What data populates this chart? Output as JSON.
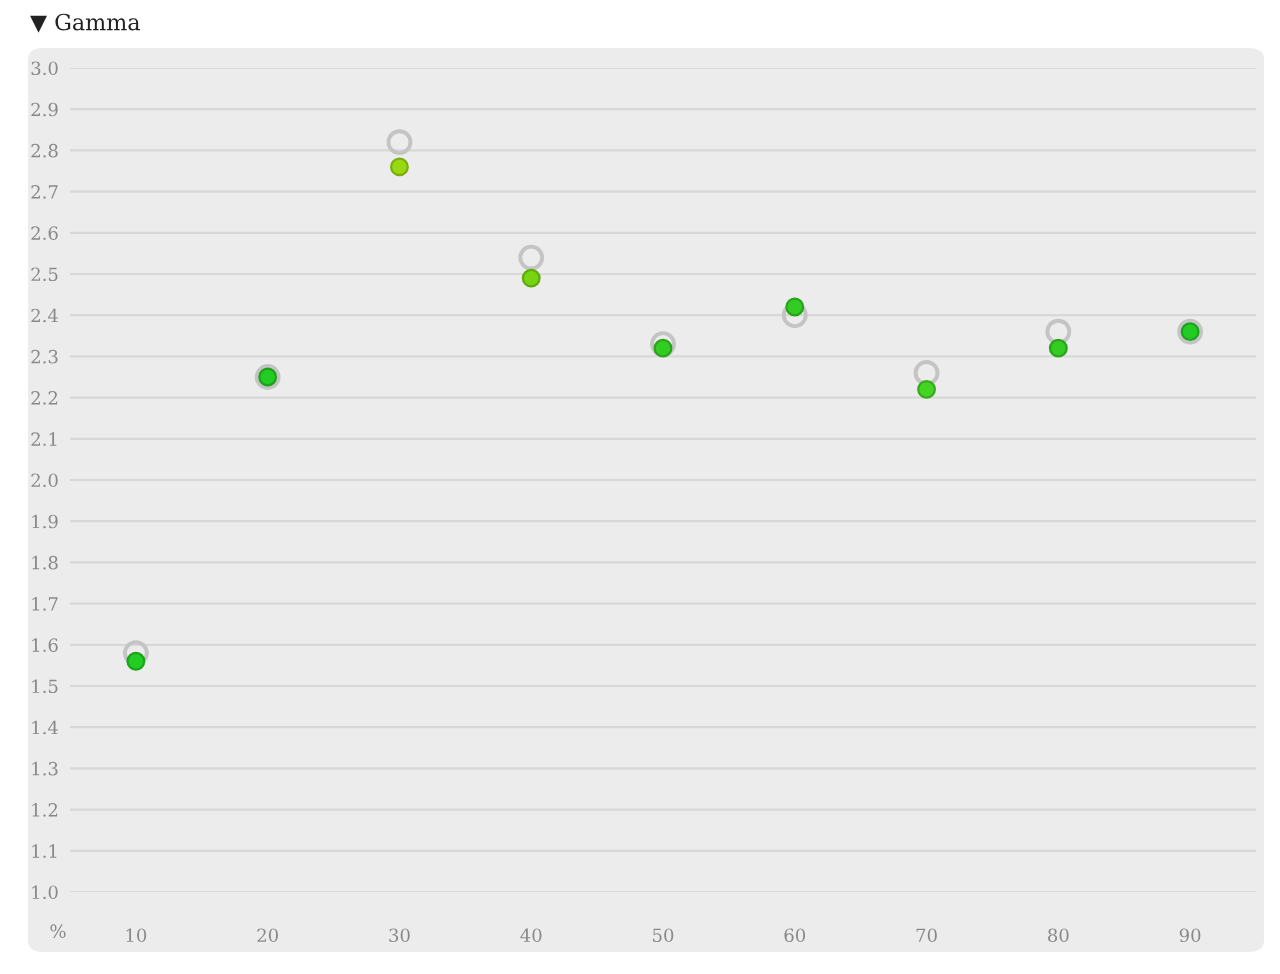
{
  "chart_data": {
    "type": "scatter",
    "title": "▼ Gamma",
    "xlabel": "%",
    "marker": "circle",
    "grid": "y",
    "categories": [
      "10",
      "20",
      "30",
      "40",
      "50",
      "60",
      "70",
      "80",
      "90"
    ],
    "ylim": [
      1,
      3
    ],
    "yticks": [
      {
        "value": 1,
        "label": "1.0"
      },
      1.1,
      1.2,
      1.3,
      1.4,
      1.5,
      1.6,
      1.7,
      1.8,
      1.9,
      {
        "value": 2,
        "label": "2.0"
      },
      2.1,
      2.2,
      2.3,
      2.4,
      2.5,
      2.6,
      2.7,
      2.8,
      2.9,
      {
        "value": 3,
        "label": "3.0"
      }
    ],
    "series": [
      {
        "color": "#c4c4c4",
        "values": [
          1.58,
          2.25,
          2.82,
          2.54,
          2.33,
          2.4,
          2.26,
          2.36,
          2.36
        ]
      },
      {
        "colors": [
          "#22cc22",
          "#22cc22",
          "#99d811",
          "#77d411",
          "#33cc22",
          "#33cc22",
          "#44d422",
          "#33cc22",
          "#22cc22"
        ],
        "values": [
          1.56,
          2.25,
          2.76,
          2.49,
          2.32,
          2.42,
          2.22,
          2.32,
          2.36
        ]
      }
    ]
  }
}
